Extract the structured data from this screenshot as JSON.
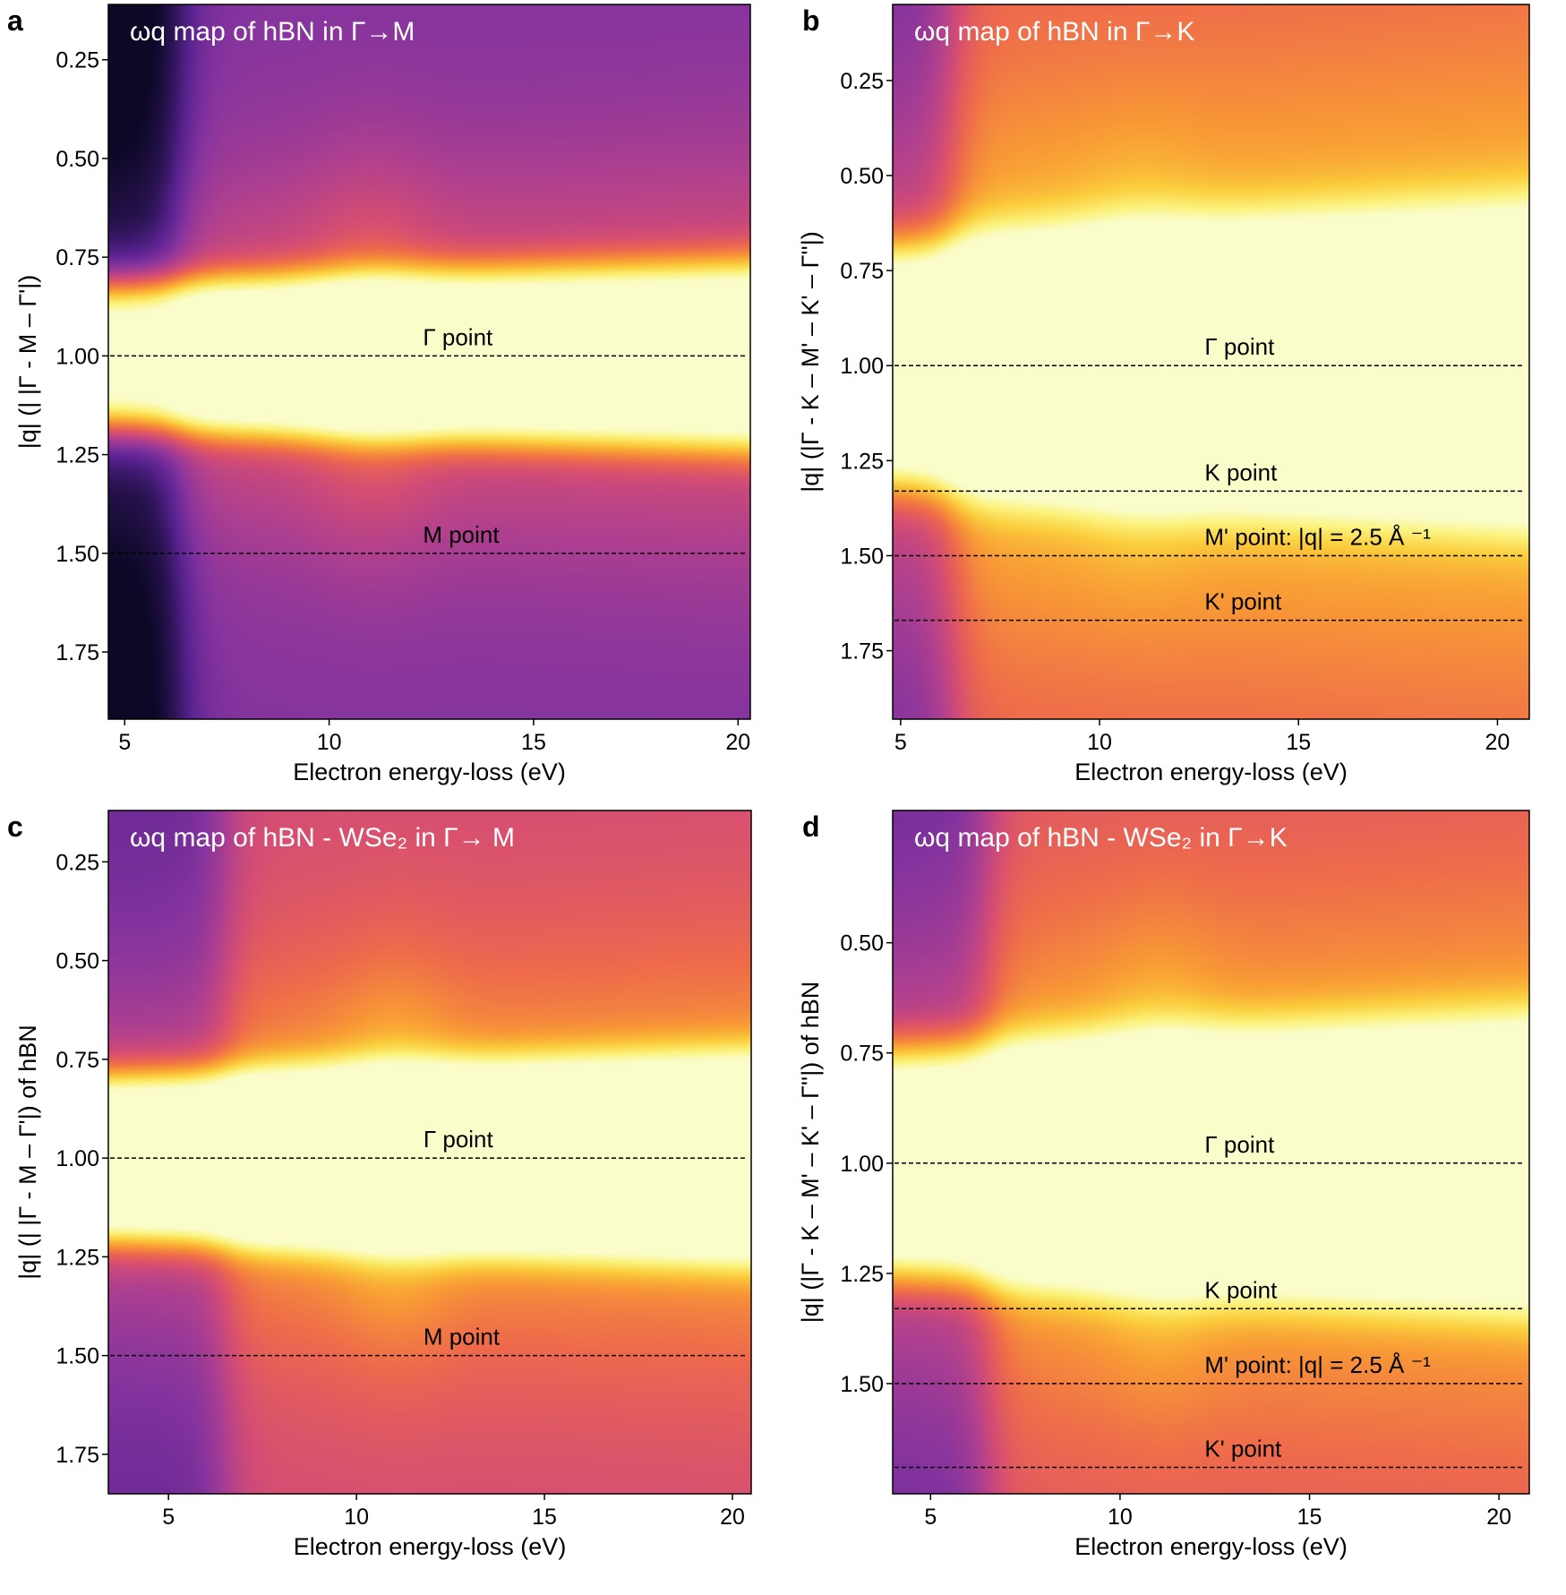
{
  "colors": {
    "colormap": [
      "#0c0826",
      "#2d1456",
      "#5a2391",
      "#87349e",
      "#b0408f",
      "#d64e72",
      "#ee6a4c",
      "#f89a35",
      "#fbcd3c",
      "#fbf27a",
      "#fafdc9"
    ],
    "title_text": "#ffffff",
    "marker_line": "#000000"
  },
  "chart_data": [
    {
      "panel": "a",
      "type": "heatmap",
      "title": "ωq map of hBN in Γ→M",
      "xlabel": "Electron energy-loss (eV)",
      "ylabel": "|q| (| |Γ - M – Γ'|)",
      "xlim": [
        4.6,
        20.3
      ],
      "ylim": [
        1.92,
        0.11
      ],
      "xticks": [
        5,
        10,
        15,
        20
      ],
      "yticks": [
        0.25,
        0.5,
        0.75,
        1.0,
        1.25,
        1.5,
        1.75
      ],
      "ytick_labels": [
        "0.25",
        "0.50",
        "0.75",
        "1.00",
        "1.25",
        "1.50",
        "1.75"
      ],
      "gamma_half_width": 0.12,
      "low_edge": 6.3,
      "low_strength": 0.35,
      "base_level": 0.32,
      "markers": [
        {
          "q": 1.0,
          "label": "Γ point"
        },
        {
          "q": 1.5,
          "label": "M point"
        }
      ]
    },
    {
      "panel": "b",
      "type": "heatmap",
      "title": "ωq map of hBN in Γ→K",
      "xlabel": "Electron energy-loss (eV)",
      "ylabel": "|q| (|Γ - K – M' – K' – Γ''|)",
      "xlim": [
        4.8,
        20.8
      ],
      "ylim": [
        1.93,
        0.05
      ],
      "xticks": [
        5,
        10,
        15,
        20
      ],
      "yticks": [
        0.25,
        0.5,
        0.75,
        1.0,
        1.25,
        1.5,
        1.75
      ],
      "ytick_labels": [
        "0.25",
        "0.50",
        "0.75",
        "1.00",
        "1.25",
        "1.50",
        "1.75"
      ],
      "gamma_half_width": 0.2,
      "low_edge": 6.3,
      "low_strength": 0.3,
      "base_level": 0.6,
      "markers": [
        {
          "q": 1.0,
          "label": "Γ point"
        },
        {
          "q": 1.33,
          "label": "K point"
        },
        {
          "q": 1.5,
          "label": "M' point: |q| = 2.5 Å ⁻¹"
        },
        {
          "q": 1.67,
          "label": "K' point"
        }
      ]
    },
    {
      "panel": "c",
      "type": "heatmap",
      "title": "ωq map of hBN - WSe₂ in Γ→ M",
      "xlabel": "Electron energy-loss (eV)",
      "ylabel": "|q| (| |Γ - M – Γ'|) of hBN",
      "xlim": [
        3.4,
        20.5
      ],
      "ylim": [
        1.85,
        0.12
      ],
      "xticks": [
        5,
        10,
        15,
        20
      ],
      "yticks": [
        0.25,
        0.5,
        0.75,
        1.0,
        1.25,
        1.5,
        1.75
      ],
      "ytick_labels": [
        "0.25",
        "0.50",
        "0.75",
        "1.00",
        "1.25",
        "1.50",
        "1.75"
      ],
      "gamma_half_width": 0.13,
      "low_edge": 6.5,
      "low_strength": 0.25,
      "base_level": 0.52,
      "markers": [
        {
          "q": 1.0,
          "label": "Γ point"
        },
        {
          "q": 1.5,
          "label": "M point"
        }
      ]
    },
    {
      "panel": "d",
      "type": "heatmap",
      "title": "ωq map of hBN - WSe₂ in Γ→K",
      "xlabel": "Electron energy-loss (eV)",
      "ylabel": "|q| (|Γ - K – M' – K' – Γ''|) of hBN",
      "xlim": [
        4.0,
        20.8
      ],
      "ylim": [
        1.75,
        0.2
      ],
      "xticks": [
        5,
        10,
        15,
        20
      ],
      "yticks": [
        0.5,
        0.75,
        1.0,
        1.25,
        1.5
      ],
      "ytick_labels": [
        "0.50",
        "0.75",
        "1.00",
        "1.25",
        "1.50"
      ],
      "gamma_half_width": 0.16,
      "low_edge": 6.5,
      "low_strength": 0.28,
      "base_level": 0.55,
      "markers": [
        {
          "q": 1.0,
          "label": "Γ point"
        },
        {
          "q": 1.33,
          "label": "K point"
        },
        {
          "q": 1.5,
          "label": "M' point: |q| = 2.5 Å ⁻¹"
        },
        {
          "q": 1.69,
          "label": "K' point"
        }
      ]
    }
  ]
}
